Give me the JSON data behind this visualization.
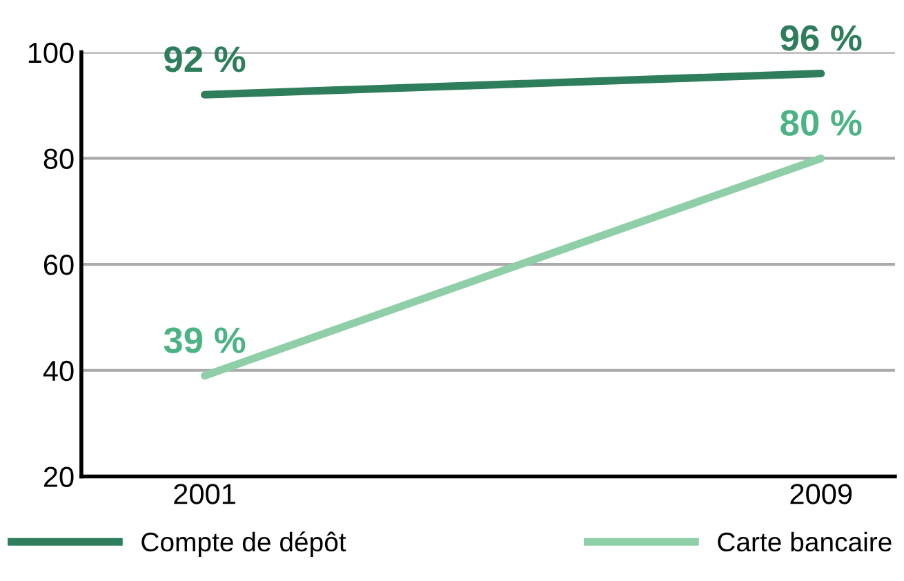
{
  "chart_data": {
    "type": "line",
    "categories": [
      "2001",
      "2009"
    ],
    "series": [
      {
        "name": "Compte de dépôt",
        "color": "#2e7d5b",
        "values": [
          92,
          96
        ],
        "value_labels": [
          "92 %",
          "96 %"
        ]
      },
      {
        "name": "Carte bancaire",
        "color": "#8fcfa8",
        "values": [
          39,
          80
        ],
        "value_labels": [
          "39 %",
          "80 %"
        ]
      }
    ],
    "ylim": [
      20,
      100
    ],
    "yticks": [
      20,
      40,
      60,
      80,
      100
    ],
    "grid": "y",
    "legend": "bottom",
    "marker": "none",
    "line_style": "solid"
  }
}
